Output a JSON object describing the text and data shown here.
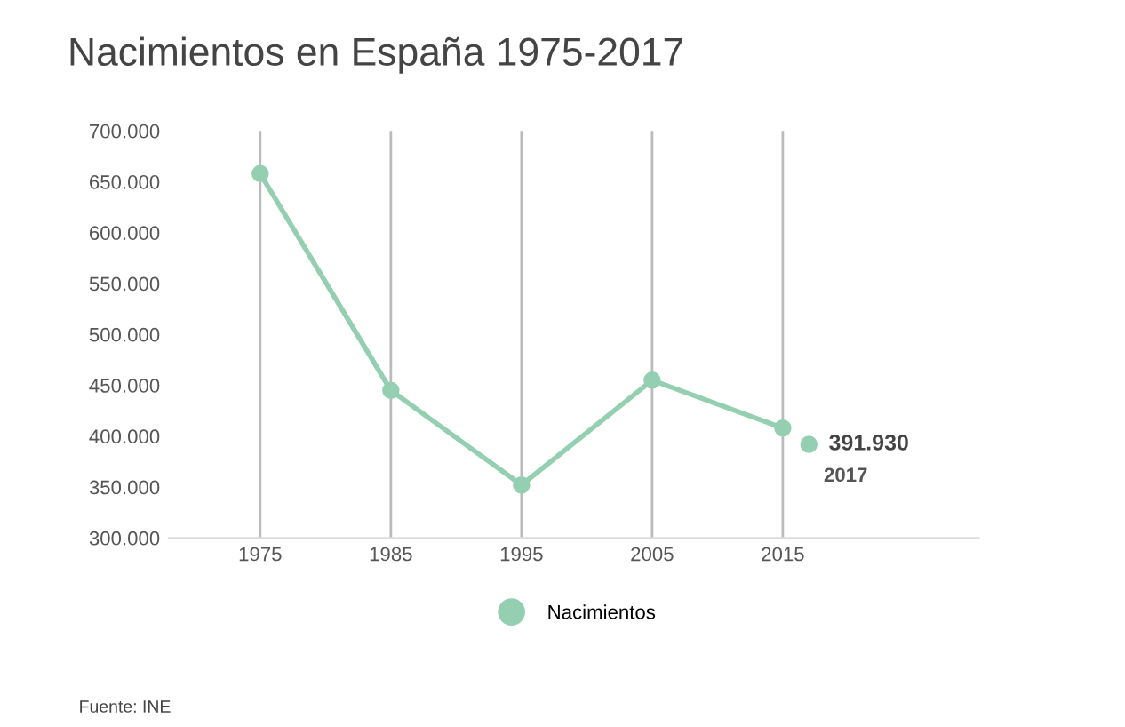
{
  "chart_data": {
    "type": "line",
    "title": "Nacimientos en España 1975-2017",
    "x": [
      1975,
      1985,
      1995,
      2005,
      2015
    ],
    "series": [
      {
        "name": "Nacimientos",
        "color": "#93cfb0",
        "values": [
          658000,
          445000,
          352000,
          455000,
          408000
        ],
        "marker": "circle"
      },
      {
        "type": "scatter",
        "color": "#93cfb0",
        "x": [
          2017
        ],
        "values": [
          391930
        ],
        "value_labels": [
          "391.930"
        ]
      }
    ],
    "xlim": [
      1968,
      2030
    ],
    "xticks": [
      1975,
      1985,
      1995,
      2005,
      2015
    ],
    "ylim": [
      300000,
      700000
    ],
    "yticks": [
      {
        "value": 300000,
        "label": "300.000"
      },
      {
        "value": 350000,
        "label": "350.000"
      },
      {
        "value": 400000,
        "label": "400.000"
      },
      {
        "value": 450000,
        "label": "450.000"
      },
      {
        "value": 500000,
        "label": "500.000"
      },
      {
        "value": 550000,
        "label": "550.000"
      },
      {
        "value": 600000,
        "label": "600.000"
      },
      {
        "value": 650000,
        "label": "650.000"
      },
      {
        "value": 700000,
        "label": "700.000"
      }
    ],
    "grid": "x",
    "legend": "bottom",
    "annotations": [
      {
        "text": "2017",
        "x": 2017,
        "y": 391930
      },
      "Fuente: INE"
    ]
  }
}
